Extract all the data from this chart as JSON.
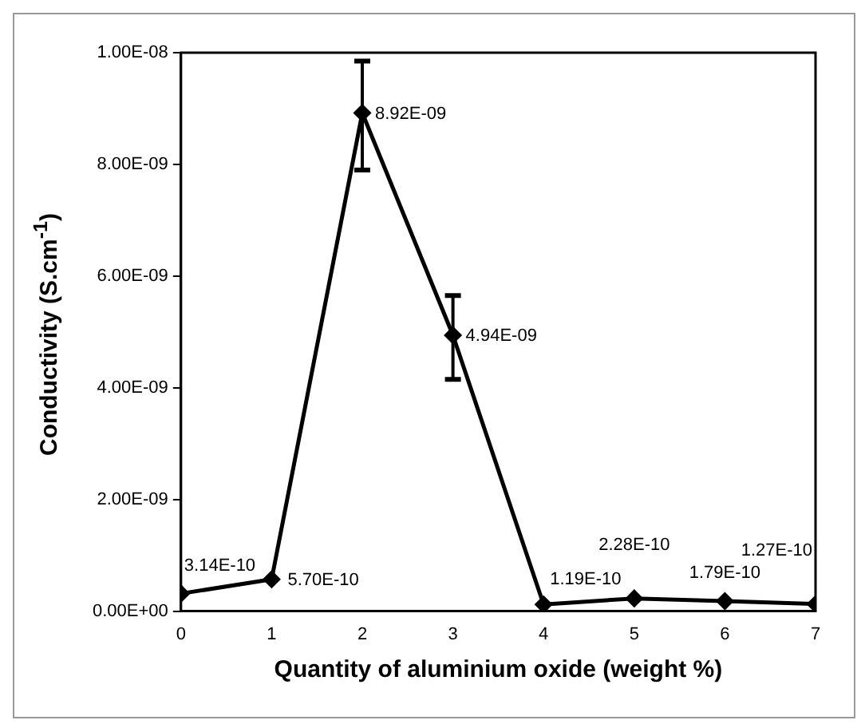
{
  "chart_data": {
    "type": "line",
    "xlabel": "Quantity of aluminium oxide (weight %)",
    "ylabel": "Conductivity (S.cm$^{-1}$)",
    "x": [
      0,
      1,
      2,
      3,
      4,
      5,
      6,
      7
    ],
    "series": [
      {
        "color": "#000000",
        "values": [
          3.14e-10,
          5.7e-10,
          8.92e-09,
          4.94e-09,
          1.19e-10,
          2.28e-10,
          1.79e-10,
          1.27e-10
        ],
        "errors": [
          null,
          null,
          [
            7.9e-09,
            9.85e-09
          ],
          [
            4.15e-09,
            5.65e-09
          ],
          null,
          null,
          null,
          null
        ],
        "value_labels": [
          "3.14E-10",
          "5.70E-10",
          "8.92E-09",
          "4.94E-09",
          "1.19E-10",
          "2.28E-10",
          "1.79E-10",
          "1.27E-10"
        ]
      }
    ],
    "xlim": [
      0,
      7
    ],
    "xticks": [
      0,
      1,
      2,
      3,
      4,
      5,
      6,
      7
    ],
    "ylim": [
      0,
      1e-08
    ],
    "yticks": [
      {
        "value": 0,
        "label": "0.00E+00"
      },
      {
        "value": 2e-09,
        "label": "2.00E-09"
      },
      {
        "value": 4e-09,
        "label": "4.00E-09"
      },
      {
        "value": 6e-09,
        "label": "6.00E-09"
      },
      {
        "value": 8e-09,
        "label": "8.00E-09"
      },
      {
        "value": 1e-08,
        "label": "1.00E-08"
      }
    ],
    "grid": false,
    "legend": false,
    "marker": "diamond",
    "line_style": "solid"
  }
}
